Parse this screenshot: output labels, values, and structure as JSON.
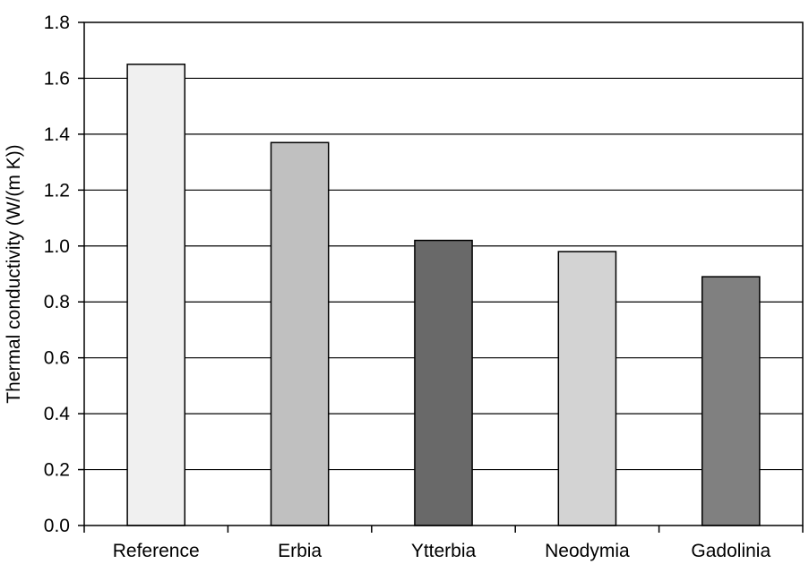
{
  "chart_data": {
    "type": "bar",
    "title": "",
    "xlabel": "",
    "ylabel": "Thermal conductivity (W/(m K))",
    "ylim": [
      0,
      1.8
    ],
    "yticks": [
      "0.0",
      "0.2",
      "0.4",
      "0.6",
      "0.8",
      "1.0",
      "1.2",
      "1.4",
      "1.6",
      "1.8"
    ],
    "grid": true,
    "legend": "none",
    "categories": [
      "Reference",
      "Erbia",
      "Ytterbia",
      "Neodymia",
      "Gadolinia"
    ],
    "values": [
      1.65,
      1.37,
      1.02,
      0.98,
      0.89
    ],
    "colors": [
      "#f0f0f0",
      "#c0c0c0",
      "#696969",
      "#d3d3d3",
      "#808080"
    ]
  }
}
